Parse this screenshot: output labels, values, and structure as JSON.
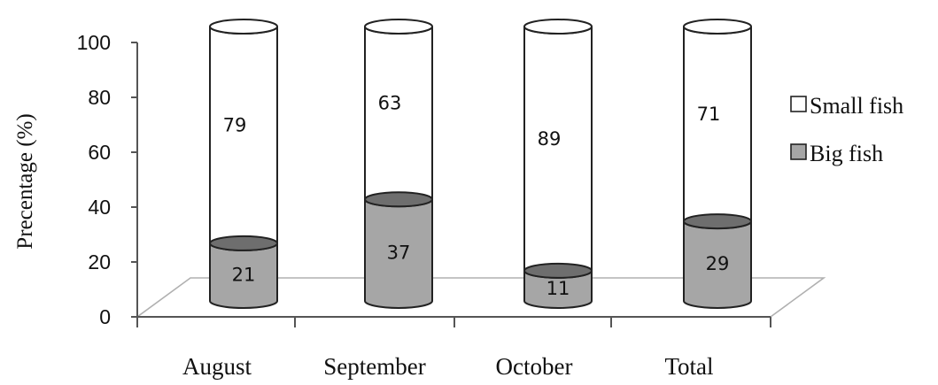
{
  "chart_data": {
    "type": "bar",
    "stacked": true,
    "style": "3d-cylinder",
    "categories": [
      "August",
      "September",
      "October",
      "Total"
    ],
    "series": [
      {
        "name": "Big fish",
        "values": [
          21,
          37,
          11,
          29
        ],
        "color": "#a6a6a6",
        "top_color": "#6e6e6e"
      },
      {
        "name": "Small fish",
        "values": [
          79,
          63,
          89,
          71
        ],
        "color": "#ffffff",
        "top_color": "#ffffff"
      }
    ],
    "title": "",
    "xlabel": "",
    "ylabel": "Precentage (%)",
    "ylim": [
      0,
      100
    ],
    "yticks": [
      0,
      20,
      40,
      60,
      80,
      100
    ],
    "grid": false,
    "legend": {
      "position": "right",
      "entries": [
        "Small fish",
        "Big fish"
      ]
    }
  }
}
